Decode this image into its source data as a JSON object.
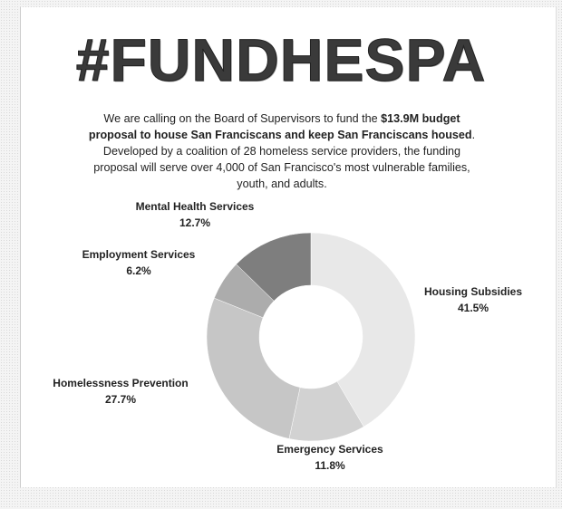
{
  "chart_data": {
    "type": "pie",
    "title": "#FUNDHESPA",
    "description": [
      "We are calling on the Board of Supervisors to fund the ",
      "$13.9M budget proposal to house San Franciscans and keep San Franciscans housed",
      ". Developed by a coalition of 28 homeless service providers, the funding proposal will serve over 4,000 of San Francisco's most vulnerable families, youth, and adults."
    ],
    "categories": [
      "Housing Subsidies",
      "Emergency Services",
      "Homelessness Prevention",
      "Employment Services",
      "Mental Health Services"
    ],
    "values": [
      41.5,
      11.8,
      27.7,
      6.2,
      12.7
    ],
    "value_labels": [
      "41.5%",
      "11.8%",
      "27.7%",
      "6.2%",
      "12.7%"
    ],
    "colors": [
      "#e8e8e8",
      "#d2d2d2",
      "#c6c6c6",
      "#acacac",
      "#7e7e7e"
    ],
    "donut": true
  }
}
